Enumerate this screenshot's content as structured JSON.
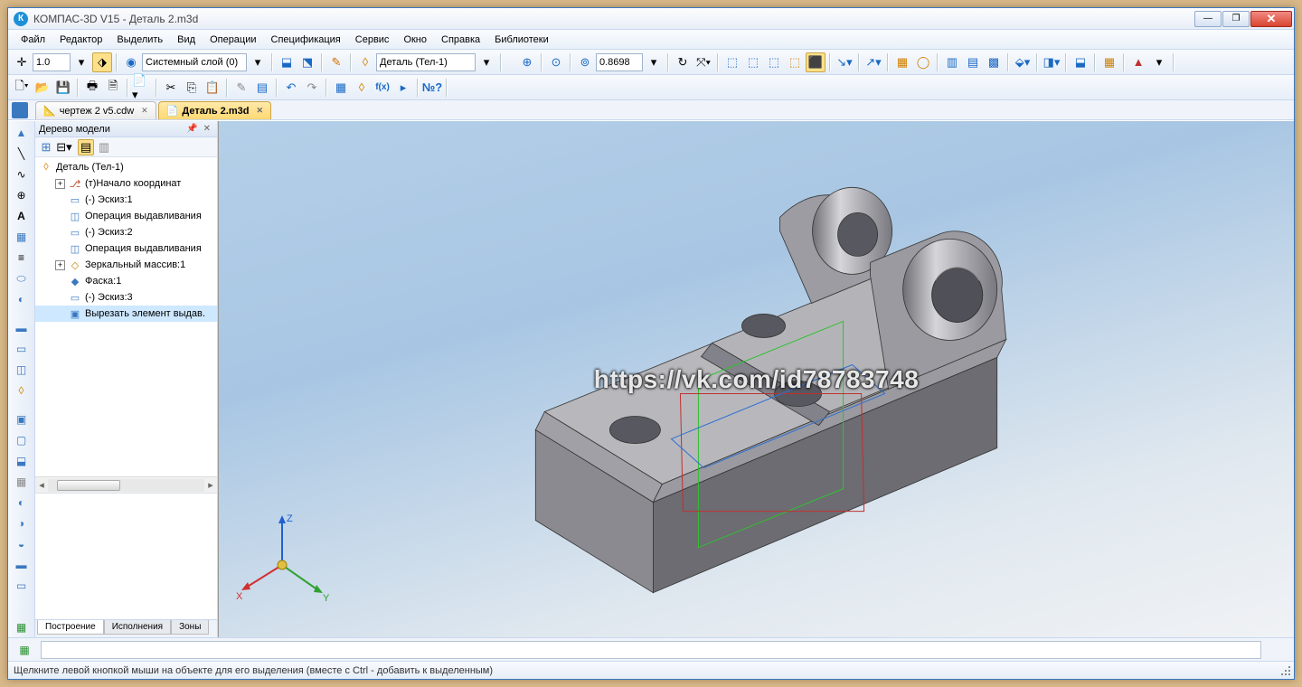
{
  "window": {
    "title": "КОМПАС-3D V15 - Деталь 2.m3d"
  },
  "menu": [
    "Файл",
    "Редактор",
    "Выделить",
    "Вид",
    "Операции",
    "Спецификация",
    "Сервис",
    "Окно",
    "Справка",
    "Библиотеки"
  ],
  "toolbar1": {
    "scale_value": "1.0",
    "layer_label": "Системный слой (0)",
    "body_label": "Деталь (Тел-1)",
    "zoom_value": "0.8698"
  },
  "doc_tabs": [
    {
      "label": "чертеж 2 v5.cdw",
      "active": false
    },
    {
      "label": "Деталь 2.m3d",
      "active": true
    }
  ],
  "panel": {
    "title": "Дерево модели",
    "root": "Деталь (Тел-1)",
    "nodes": [
      {
        "indent": 1,
        "exp": "+",
        "icon": "⎇",
        "color": "#c05030",
        "label": "(т)Начало координат"
      },
      {
        "indent": 1,
        "exp": "",
        "icon": "▭",
        "color": "#3a78c0",
        "label": "(-) Эскиз:1"
      },
      {
        "indent": 1,
        "exp": "",
        "icon": "◫",
        "color": "#3a78c0",
        "label": "Операция выдавливания"
      },
      {
        "indent": 1,
        "exp": "",
        "icon": "▭",
        "color": "#3a78c0",
        "label": "(-) Эскиз:2"
      },
      {
        "indent": 1,
        "exp": "",
        "icon": "◫",
        "color": "#3a78c0",
        "label": "Операция выдавливания"
      },
      {
        "indent": 1,
        "exp": "+",
        "icon": "◇",
        "color": "#d08000",
        "label": "Зеркальный массив:1"
      },
      {
        "indent": 1,
        "exp": "",
        "icon": "◆",
        "color": "#3a78c0",
        "label": "Фаска:1"
      },
      {
        "indent": 1,
        "exp": "",
        "icon": "▭",
        "color": "#3a78c0",
        "label": "(-) Эскиз:3"
      },
      {
        "indent": 1,
        "exp": "",
        "icon": "▣",
        "color": "#3a78c0",
        "label": "Вырезать элемент выдав."
      }
    ],
    "tabs": [
      "Построение",
      "Исполнения",
      "Зоны"
    ]
  },
  "triad": {
    "x_label": "X",
    "y_label": "Y",
    "z_label": "Z"
  },
  "watermark": "https://vk.com/id78783748",
  "status": "Щелкните левой кнопкой мыши на объекте для его выделения (вместе с Ctrl - добавить к выделенным)",
  "colors": {
    "part_top": "#b8b8bc",
    "part_front": "#8a8a90",
    "part_side": "#6c6c72",
    "hole": "#585860",
    "cyl_light": "#d4d4d8",
    "cyl_dark": "#707076"
  }
}
